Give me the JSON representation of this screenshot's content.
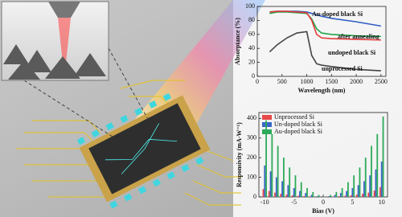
{
  "chart_data": [
    {
      "type": "line",
      "x": [
        250,
        400,
        600,
        800,
        1000,
        1100,
        1200,
        1300,
        1500,
        2000,
        2500
      ],
      "series": [
        {
          "name": "Au-doped black Si",
          "color": "#2f5fc4",
          "values": [
            92,
            93,
            93,
            93,
            92,
            90,
            88,
            86,
            83,
            78,
            72
          ]
        },
        {
          "name": "after annealing",
          "color": "#21a64a",
          "values": [
            90,
            92,
            92,
            91,
            90,
            82,
            68,
            62,
            60,
            58,
            57
          ]
        },
        {
          "name": "undoped black Si",
          "color": "#e23a3a",
          "values": [
            92,
            93,
            93,
            92,
            91,
            80,
            60,
            55,
            54,
            53,
            52
          ]
        },
        {
          "name": "unprocessed Si",
          "color": "#444444",
          "values": [
            35,
            45,
            55,
            62,
            64,
            30,
            18,
            16,
            14,
            10,
            8
          ]
        }
      ],
      "xlim": [
        0,
        2600
      ],
      "xticks": [
        0,
        500,
        1000,
        1500,
        2000,
        2500
      ],
      "ylim": [
        0,
        100
      ],
      "yticks": [
        0,
        20,
        40,
        60,
        80,
        100
      ],
      "xlabel": "Wavelength (nm)",
      "ylabel": "Absorptance (%)"
    },
    {
      "type": "bar",
      "x": [
        -10,
        -9,
        -8,
        -7,
        -6,
        -5,
        -4,
        -3,
        -2,
        -1,
        0,
        1,
        2,
        3,
        4,
        5,
        6,
        7,
        8,
        9,
        10
      ],
      "series": [
        {
          "name": "Unprocessed Si",
          "color": "#e8484a",
          "values": [
            40,
            30,
            22,
            16,
            12,
            8,
            6,
            4,
            2,
            1,
            0,
            1,
            2,
            4,
            6,
            8,
            12,
            16,
            22,
            32,
            50
          ]
        },
        {
          "name": "Un-doped black Si",
          "color": "#3a66c8",
          "values": [
            160,
            130,
            100,
            80,
            60,
            45,
            30,
            20,
            10,
            4,
            1,
            4,
            10,
            20,
            30,
            45,
            60,
            80,
            110,
            140,
            180
          ]
        },
        {
          "name": "Au-doped black Si",
          "color": "#2eab5a",
          "values": [
            390,
            320,
            260,
            200,
            150,
            110,
            75,
            45,
            25,
            10,
            2,
            10,
            25,
            45,
            75,
            110,
            150,
            200,
            260,
            320,
            410
          ]
        }
      ],
      "xlim": [
        -11,
        11
      ],
      "xticks": [
        -10,
        -5,
        0,
        5,
        10
      ],
      "ylim": [
        0,
        430
      ],
      "yticks": [
        0,
        100,
        200,
        300,
        400
      ],
      "xlabel": "Bias (V)",
      "ylabel": "Responsivity (mA·W⁻¹)",
      "legend": "upper-left"
    }
  ]
}
